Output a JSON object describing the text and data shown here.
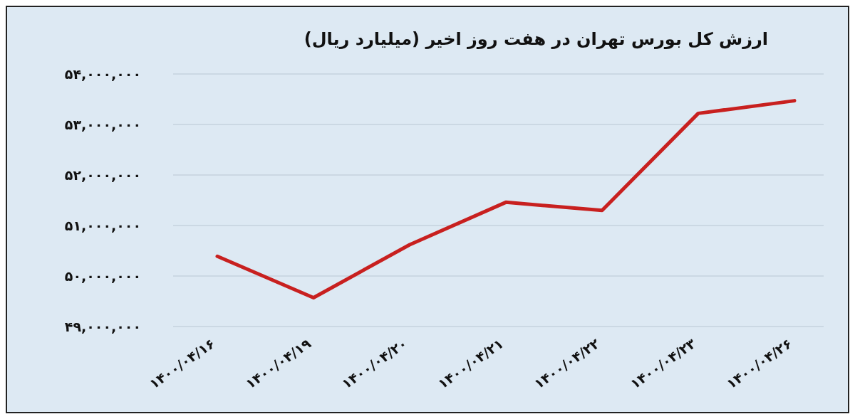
{
  "chart_data": {
    "type": "line",
    "title": "ارزش کل بورس تهران در هفت روز اخیر (میلیارد ریال)",
    "categories": [
      "۱۴۰۰/۰۴/۱۶",
      "۱۴۰۰/۰۴/۱۹",
      "۱۴۰۰/۰۴/۲۰",
      "۱۴۰۰/۰۴/۲۱",
      "۱۴۰۰/۰۴/۲۲",
      "۱۴۰۰/۰۴/۲۳",
      "۱۴۰۰/۰۴/۲۶"
    ],
    "series": [
      {
        "color": "#c8201f",
        "values": [
          50390000,
          49570000,
          50620000,
          51460000,
          51300000,
          53220000,
          53470000
        ]
      }
    ],
    "ylim": [
      49000000,
      54000000
    ],
    "yticks": [
      {
        "value": 49000000,
        "label": "۴۹,۰۰۰,۰۰۰"
      },
      {
        "value": 50000000,
        "label": "۵۰,۰۰۰,۰۰۰"
      },
      {
        "value": 51000000,
        "label": "۵۱,۰۰۰,۰۰۰"
      },
      {
        "value": 52000000,
        "label": "۵۲,۰۰۰,۰۰۰"
      },
      {
        "value": 53000000,
        "label": "۵۳,۰۰۰,۰۰۰"
      },
      {
        "value": 54000000,
        "label": "۵۴,۰۰۰,۰۰۰"
      }
    ],
    "grid": "y",
    "marker": "none",
    "line_style": "solid"
  }
}
